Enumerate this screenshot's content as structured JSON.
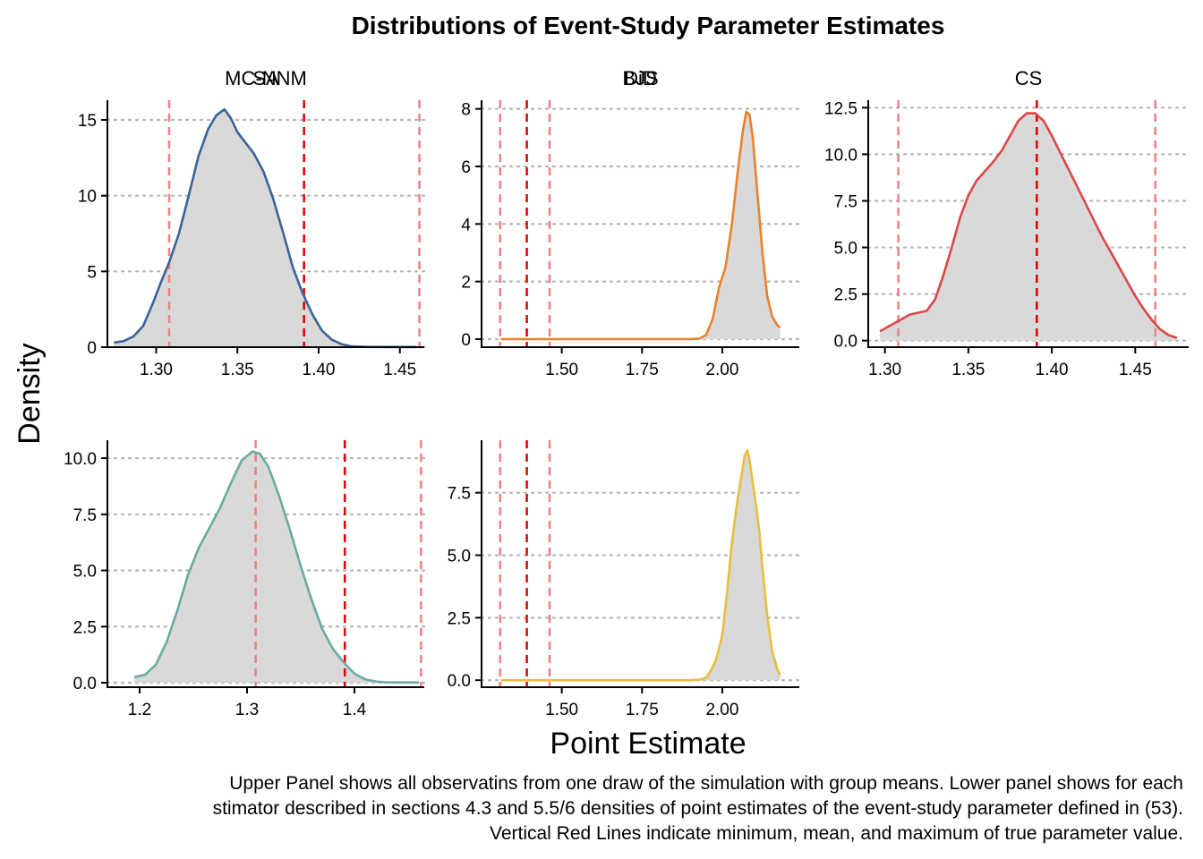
{
  "title": "Distributions of Event-Study Parameter Estimates",
  "xlabel": "Point Estimate",
  "ylabel": "Density",
  "caption": [
    "Upper Panel shows all observatins from one draw of the simulation with group means. Lower panel shows for each",
    "stimator described in sections 4.3 and 5.5/6 densities of point estimates of the event-study parameter defined in (53).",
    "Vertical Red Lines indicate minimum, mean, and maximum of true parameter value."
  ],
  "chart_data": [
    {
      "type": "area",
      "panel": "MC-NNM",
      "color": "#3B6496",
      "xlim": [
        1.27,
        1.465
      ],
      "ylim": [
        0,
        16.3
      ],
      "x_ticks": [
        1.3,
        1.35,
        1.4,
        1.45
      ],
      "x_tick_labels": [
        "1.30",
        "1.35",
        "1.40",
        "1.45"
      ],
      "y_ticks": [
        0,
        5,
        10,
        15
      ],
      "y_tick_labels": [
        "0",
        "5",
        "10",
        "15"
      ],
      "vlines": [
        1.308,
        1.391,
        1.462
      ],
      "vline_kinds": [
        "min",
        "mean",
        "max"
      ],
      "x": [
        1.274,
        1.28,
        1.286,
        1.292,
        1.298,
        1.303,
        1.308,
        1.314,
        1.32,
        1.326,
        1.332,
        1.337,
        1.342,
        1.346,
        1.35,
        1.355,
        1.36,
        1.366,
        1.372,
        1.378,
        1.384,
        1.39,
        1.396,
        1.402,
        1.408,
        1.414,
        1.42,
        1.43,
        1.44,
        1.45,
        1.46
      ],
      "y": [
        0.3,
        0.4,
        0.7,
        1.4,
        2.9,
        4.3,
        5.6,
        7.5,
        10.0,
        12.6,
        14.4,
        15.3,
        15.7,
        15.1,
        14.2,
        13.5,
        12.8,
        11.6,
        9.8,
        7.6,
        5.3,
        3.6,
        2.2,
        1.1,
        0.5,
        0.2,
        0.06,
        0.02,
        0.01,
        0.01,
        0.01
      ]
    },
    {
      "type": "area",
      "panel": "DiD",
      "color": "#E8832A",
      "xlim": [
        1.25,
        2.24
      ],
      "ylim": [
        -0.28,
        8.3
      ],
      "x_ticks": [
        1.5,
        1.75,
        2.0
      ],
      "x_tick_labels": [
        "1.50",
        "1.75",
        "2.00"
      ],
      "y_ticks": [
        0,
        2,
        4,
        6,
        8
      ],
      "y_tick_labels": [
        "0",
        "2",
        "4",
        "6",
        "8"
      ],
      "vlines": [
        1.308,
        1.391,
        1.462
      ],
      "vline_kinds": [
        "min",
        "mean",
        "max"
      ],
      "x": [
        1.31,
        1.5,
        1.7,
        1.9,
        1.93,
        1.95,
        1.97,
        1.99,
        2.01,
        2.03,
        2.05,
        2.065,
        2.075,
        2.085,
        2.095,
        2.11,
        2.125,
        2.14,
        2.155,
        2.17,
        2.18
      ],
      "y": [
        0.0,
        0.0,
        0.0,
        0.0,
        0.02,
        0.15,
        0.7,
        1.8,
        2.5,
        4.0,
        6.0,
        7.3,
        7.9,
        7.8,
        7.0,
        5.0,
        3.0,
        1.5,
        0.8,
        0.5,
        0.4
      ]
    },
    {
      "type": "area",
      "panel": "CS",
      "color": "#D94848",
      "xlim": [
        1.29,
        1.482
      ],
      "ylim": [
        -0.35,
        12.9
      ],
      "x_ticks": [
        1.3,
        1.35,
        1.4,
        1.45
      ],
      "x_tick_labels": [
        "1.30",
        "1.35",
        "1.40",
        "1.45"
      ],
      "y_ticks": [
        0.0,
        2.5,
        5.0,
        7.5,
        10.0,
        12.5
      ],
      "y_tick_labels": [
        "0.0",
        "2.5",
        "5.0",
        "7.5",
        "10.0",
        "12.5"
      ],
      "vlines": [
        1.308,
        1.391,
        1.462
      ],
      "vline_kinds": [
        "min",
        "mean",
        "max"
      ],
      "x": [
        1.297,
        1.303,
        1.309,
        1.315,
        1.32,
        1.325,
        1.33,
        1.335,
        1.34,
        1.345,
        1.35,
        1.355,
        1.36,
        1.365,
        1.37,
        1.375,
        1.38,
        1.385,
        1.39,
        1.395,
        1.4,
        1.405,
        1.41,
        1.415,
        1.42,
        1.425,
        1.43,
        1.435,
        1.44,
        1.445,
        1.45,
        1.455,
        1.46,
        1.465,
        1.47,
        1.475
      ],
      "y": [
        0.5,
        0.8,
        1.1,
        1.4,
        1.5,
        1.6,
        2.2,
        3.5,
        5.0,
        6.6,
        7.8,
        8.6,
        9.1,
        9.6,
        10.2,
        11.0,
        11.8,
        12.2,
        12.2,
        11.8,
        11.0,
        10.1,
        9.2,
        8.3,
        7.4,
        6.5,
        5.6,
        4.8,
        4.0,
        3.2,
        2.4,
        1.7,
        1.1,
        0.6,
        0.3,
        0.15
      ]
    },
    {
      "type": "area",
      "panel": "SA",
      "color": "#6AABA0",
      "xlim": [
        1.17,
        1.465
      ],
      "ylim": [
        -0.2,
        10.8
      ],
      "x_ticks": [
        1.2,
        1.3,
        1.4
      ],
      "x_tick_labels": [
        "1.2",
        "1.3",
        "1.4"
      ],
      "y_ticks": [
        0.0,
        2.5,
        5.0,
        7.5,
        10.0
      ],
      "y_tick_labels": [
        "0.0",
        "2.5",
        "5.0",
        "7.5",
        "10.0"
      ],
      "vlines": [
        1.308,
        1.391,
        1.462
      ],
      "vline_kinds": [
        "min",
        "mean",
        "max"
      ],
      "x": [
        1.195,
        1.205,
        1.215,
        1.225,
        1.235,
        1.245,
        1.255,
        1.265,
        1.275,
        1.285,
        1.295,
        1.305,
        1.312,
        1.32,
        1.33,
        1.34,
        1.35,
        1.36,
        1.37,
        1.38,
        1.39,
        1.4,
        1.41,
        1.42,
        1.43,
        1.445,
        1.46
      ],
      "y": [
        0.25,
        0.35,
        0.8,
        1.8,
        3.2,
        4.8,
        6.0,
        6.9,
        7.8,
        8.9,
        9.9,
        10.3,
        10.2,
        9.6,
        8.3,
        6.8,
        5.2,
        3.7,
        2.4,
        1.5,
        0.9,
        0.4,
        0.15,
        0.05,
        0.02,
        0.01,
        0.01
      ]
    },
    {
      "type": "area",
      "panel": "BJS",
      "color": "#E8BE3A",
      "xlim": [
        1.25,
        2.24
      ],
      "ylim": [
        -0.28,
        9.6
      ],
      "x_ticks": [
        1.5,
        1.75,
        2.0
      ],
      "x_tick_labels": [
        "1.50",
        "1.75",
        "2.00"
      ],
      "y_ticks": [
        0.0,
        2.5,
        5.0,
        7.5
      ],
      "y_tick_labels": [
        "0.0",
        "2.5",
        "5.0",
        "7.5"
      ],
      "vlines": [
        1.308,
        1.391,
        1.462
      ],
      "vline_kinds": [
        "min",
        "mean",
        "max"
      ],
      "x": [
        1.31,
        1.5,
        1.7,
        1.9,
        1.93,
        1.95,
        1.965,
        1.98,
        2.0,
        2.015,
        2.03,
        2.045,
        2.06,
        2.07,
        2.078,
        2.085,
        2.095,
        2.105,
        2.115,
        2.125,
        2.14,
        2.155,
        2.17,
        2.18
      ],
      "y": [
        0.0,
        0.0,
        0.0,
        0.0,
        0.02,
        0.1,
        0.4,
        0.8,
        1.8,
        3.5,
        5.5,
        7.0,
        8.2,
        9.0,
        9.2,
        8.8,
        7.9,
        7.0,
        6.0,
        4.5,
        2.6,
        1.2,
        0.5,
        0.2
      ]
    }
  ]
}
